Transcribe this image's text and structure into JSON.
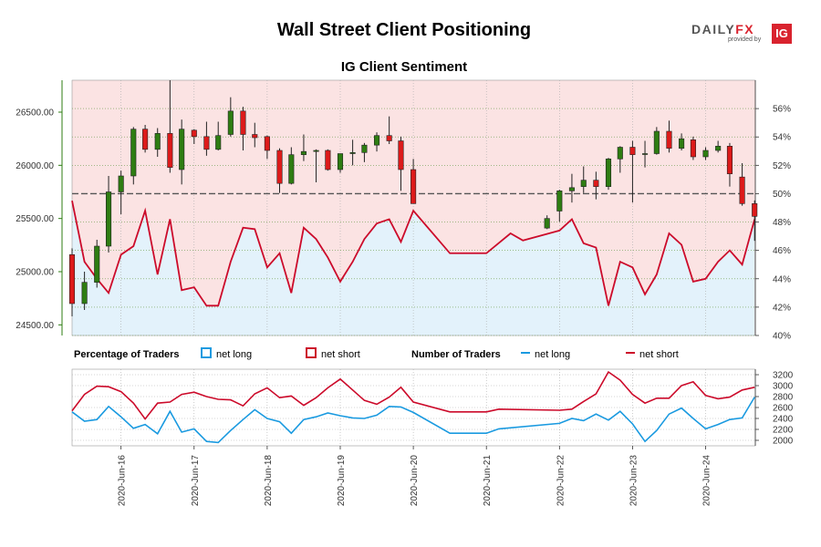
{
  "header": {
    "title": "Wall Street Client Positioning",
    "subtitle": "IG Client Sentiment",
    "logo_text_a": "DAILY",
    "logo_text_b": "FX",
    "logo_sub": "provided by",
    "logo_badge": "IG"
  },
  "legend": {
    "pct_heading": "Percentage of Traders",
    "pct_long": "net long",
    "pct_short": "net short",
    "num_heading": "Number of Traders",
    "num_long": "net long",
    "num_short": "net short"
  },
  "colors": {
    "long": "#1a9ae0",
    "short": "#cc0a2a",
    "bull_candle": "#2e7d12",
    "bear_candle": "#dd1a1a",
    "short_zone": "#fbe3e3",
    "long_zone": "#e3f2fb",
    "left_axis": "#2e7d12"
  },
  "chart_data": [
    {
      "type": "candlestick",
      "title": "IG Client Sentiment",
      "y_left_ticks": [
        "24500.00",
        "25000.00",
        "25500.00",
        "26000.00",
        "26500.00"
      ],
      "y_left_range": [
        24400,
        26800
      ],
      "y_right_ticks": [
        "40%",
        "42%",
        "44%",
        "46%",
        "48%",
        "50%",
        "52%",
        "54%",
        "56%"
      ],
      "y_right_range": [
        40,
        58
      ],
      "x_ticks": [
        "2020-Jun-16",
        "2020-Jun-17",
        "2020-Jun-18",
        "2020-Jun-19",
        "2020-Jun-20",
        "2020-Jun-21",
        "2020-Jun-22",
        "2020-Jun-23",
        "2020-Jun-24"
      ],
      "x_range": [
        15.33,
        24.68
      ],
      "reference_line_pct": 50,
      "candles": [
        {
          "t": 15.33,
          "o": 25160,
          "h": 25220,
          "l": 24580,
          "c": 24700
        },
        {
          "t": 15.5,
          "o": 24700,
          "h": 25000,
          "l": 24640,
          "c": 24900
        },
        {
          "t": 15.67,
          "o": 24900,
          "h": 25300,
          "l": 24850,
          "c": 25240
        },
        {
          "t": 15.83,
          "o": 25240,
          "h": 25900,
          "l": 25180,
          "c": 25750
        },
        {
          "t": 16.0,
          "o": 25750,
          "h": 25950,
          "l": 25540,
          "c": 25900
        },
        {
          "t": 16.17,
          "o": 25900,
          "h": 26360,
          "l": 25820,
          "c": 26340
        },
        {
          "t": 16.33,
          "o": 26340,
          "h": 26380,
          "l": 26120,
          "c": 26150
        },
        {
          "t": 16.5,
          "o": 26150,
          "h": 26350,
          "l": 26080,
          "c": 26300
        },
        {
          "t": 16.67,
          "o": 26300,
          "h": 26800,
          "l": 25930,
          "c": 25980
        },
        {
          "t": 16.83,
          "o": 25960,
          "h": 26430,
          "l": 25820,
          "c": 26340
        },
        {
          "t": 17.0,
          "o": 26330,
          "h": 26340,
          "l": 26200,
          "c": 26270
        },
        {
          "t": 17.17,
          "o": 26270,
          "h": 26410,
          "l": 26090,
          "c": 26150
        },
        {
          "t": 17.33,
          "o": 26150,
          "h": 26410,
          "l": 26140,
          "c": 26280
        },
        {
          "t": 17.5,
          "o": 26290,
          "h": 26640,
          "l": 26270,
          "c": 26510
        },
        {
          "t": 17.67,
          "o": 26510,
          "h": 26550,
          "l": 26140,
          "c": 26290
        },
        {
          "t": 17.83,
          "o": 26290,
          "h": 26400,
          "l": 26170,
          "c": 26260
        },
        {
          "t": 18.0,
          "o": 26270,
          "h": 26280,
          "l": 26060,
          "c": 26140
        },
        {
          "t": 18.17,
          "o": 26140,
          "h": 26160,
          "l": 25740,
          "c": 25830
        },
        {
          "t": 18.33,
          "o": 25830,
          "h": 26170,
          "l": 25820,
          "c": 26100
        },
        {
          "t": 18.5,
          "o": 26100,
          "h": 26290,
          "l": 26040,
          "c": 26130
        },
        {
          "t": 18.67,
          "o": 26130,
          "h": 26150,
          "l": 25840,
          "c": 26140
        },
        {
          "t": 18.83,
          "o": 26140,
          "h": 26150,
          "l": 25950,
          "c": 25960
        },
        {
          "t": 19.0,
          "o": 25960,
          "h": 26110,
          "l": 25930,
          "c": 26110
        },
        {
          "t": 19.17,
          "o": 26110,
          "h": 26240,
          "l": 26000,
          "c": 26120
        },
        {
          "t": 19.33,
          "o": 26120,
          "h": 26210,
          "l": 26030,
          "c": 26190
        },
        {
          "t": 19.5,
          "o": 26190,
          "h": 26310,
          "l": 26130,
          "c": 26280
        },
        {
          "t": 19.67,
          "o": 26280,
          "h": 26460,
          "l": 26200,
          "c": 26230
        },
        {
          "t": 19.83,
          "o": 26230,
          "h": 26270,
          "l": 25760,
          "c": 25960
        },
        {
          "t": 20.0,
          "o": 25960,
          "h": 26060,
          "l": 25640,
          "c": 25640
        },
        {
          "t": 21.83,
          "o": 25410,
          "h": 25530,
          "l": 25400,
          "c": 25500
        },
        {
          "t": 22.0,
          "o": 25570,
          "h": 25770,
          "l": 25470,
          "c": 25760
        },
        {
          "t": 22.17,
          "o": 25760,
          "h": 25920,
          "l": 25650,
          "c": 25790
        },
        {
          "t": 22.33,
          "o": 25800,
          "h": 25990,
          "l": 25740,
          "c": 25860
        },
        {
          "t": 22.5,
          "o": 25860,
          "h": 25940,
          "l": 25680,
          "c": 25800
        },
        {
          "t": 22.67,
          "o": 25800,
          "h": 26070,
          "l": 25770,
          "c": 26060
        },
        {
          "t": 22.83,
          "o": 26060,
          "h": 26180,
          "l": 25930,
          "c": 26170
        },
        {
          "t": 23.0,
          "o": 26170,
          "h": 26230,
          "l": 25650,
          "c": 26100
        },
        {
          "t": 23.17,
          "o": 26110,
          "h": 26230,
          "l": 25980,
          "c": 26110
        },
        {
          "t": 23.33,
          "o": 26110,
          "h": 26360,
          "l": 26100,
          "c": 26320
        },
        {
          "t": 23.5,
          "o": 26320,
          "h": 26420,
          "l": 26120,
          "c": 26160
        },
        {
          "t": 23.67,
          "o": 26160,
          "h": 26300,
          "l": 26140,
          "c": 26250
        },
        {
          "t": 23.83,
          "o": 26240,
          "h": 26270,
          "l": 26050,
          "c": 26080
        },
        {
          "t": 24.0,
          "o": 26080,
          "h": 26170,
          "l": 26050,
          "c": 26140
        },
        {
          "t": 24.17,
          "o": 26140,
          "h": 26230,
          "l": 26120,
          "c": 26180
        },
        {
          "t": 24.33,
          "o": 26180,
          "h": 26210,
          "l": 25800,
          "c": 25920
        },
        {
          "t": 24.5,
          "o": 25890,
          "h": 26020,
          "l": 25620,
          "c": 25640
        },
        {
          "t": 24.67,
          "o": 25640,
          "h": 25670,
          "l": 25290,
          "c": 25520
        }
      ],
      "net_short_pct": {
        "t": [
          15.33,
          15.5,
          15.67,
          15.83,
          16.0,
          16.17,
          16.33,
          16.5,
          16.67,
          16.83,
          17.0,
          17.17,
          17.33,
          17.5,
          17.67,
          17.83,
          18.0,
          18.17,
          18.33,
          18.5,
          18.67,
          18.83,
          19.0,
          19.17,
          19.33,
          19.5,
          19.67,
          19.83,
          20.0,
          20.5,
          21.0,
          21.33,
          21.5,
          22.0,
          22.17,
          22.33,
          22.5,
          22.67,
          22.83,
          23.0,
          23.17,
          23.33,
          23.5,
          23.67,
          23.83,
          24.0,
          24.17,
          24.33,
          24.5,
          24.67
        ],
        "v": [
          49.5,
          45.2,
          44.0,
          43.0,
          45.7,
          46.3,
          48.8,
          44.3,
          48.2,
          43.2,
          43.4,
          42.1,
          42.1,
          45.2,
          47.6,
          47.5,
          44.8,
          45.8,
          43.0,
          47.6,
          46.8,
          45.5,
          43.8,
          45.2,
          46.8,
          47.9,
          48.2,
          46.6,
          48.8,
          45.8,
          45.8,
          47.2,
          46.7,
          47.4,
          48.2,
          46.5,
          46.2,
          42.1,
          45.2,
          44.8,
          42.9,
          44.3,
          47.2,
          46.4,
          43.8,
          44.0,
          45.2,
          46.0,
          45.0,
          48.2
        ]
      },
      "net_long_pct_fill": "below line"
    },
    {
      "type": "line",
      "title": "Number of Traders",
      "y_ticks": [
        "2000",
        "2200",
        "2400",
        "2600",
        "2800",
        "3000",
        "3200"
      ],
      "y_range": [
        1900,
        3300
      ],
      "x_range": [
        15.33,
        24.68
      ],
      "series": [
        {
          "name": "net long",
          "t": [
            15.33,
            15.5,
            15.67,
            15.83,
            16.0,
            16.17,
            16.33,
            16.5,
            16.67,
            16.83,
            17.0,
            17.17,
            17.33,
            17.5,
            17.67,
            17.83,
            18.0,
            18.17,
            18.33,
            18.5,
            18.67,
            18.83,
            19.0,
            19.17,
            19.33,
            19.5,
            19.67,
            19.83,
            20.0,
            20.5,
            21.0,
            21.17,
            22.0,
            22.17,
            22.33,
            22.5,
            22.67,
            22.83,
            23.0,
            23.17,
            23.33,
            23.5,
            23.67,
            23.83,
            24.0,
            24.17,
            24.33,
            24.5,
            24.67
          ],
          "v": [
            2520,
            2350,
            2380,
            2620,
            2430,
            2220,
            2290,
            2120,
            2530,
            2150,
            2210,
            1980,
            1960,
            2180,
            2380,
            2560,
            2400,
            2340,
            2130,
            2380,
            2430,
            2500,
            2450,
            2410,
            2400,
            2460,
            2620,
            2610,
            2510,
            2130,
            2130,
            2210,
            2310,
            2400,
            2360,
            2480,
            2370,
            2530,
            2300,
            1980,
            2180,
            2480,
            2590,
            2400,
            2210,
            2290,
            2380,
            2410,
            2790
          ]
        },
        {
          "name": "net short",
          "t": [
            15.33,
            15.5,
            15.67,
            15.83,
            16.0,
            16.17,
            16.33,
            16.5,
            16.67,
            16.83,
            17.0,
            17.17,
            17.33,
            17.5,
            17.67,
            17.83,
            18.0,
            18.17,
            18.33,
            18.5,
            18.67,
            18.83,
            19.0,
            19.17,
            19.33,
            19.5,
            19.67,
            19.83,
            20.0,
            20.5,
            21.0,
            21.17,
            22.0,
            22.17,
            22.33,
            22.5,
            22.67,
            22.83,
            23.0,
            23.17,
            23.33,
            23.5,
            23.67,
            23.83,
            24.0,
            24.17,
            24.33,
            24.5,
            24.67
          ],
          "v": [
            2540,
            2840,
            2990,
            2980,
            2890,
            2680,
            2390,
            2680,
            2700,
            2840,
            2880,
            2800,
            2750,
            2740,
            2630,
            2850,
            2960,
            2780,
            2810,
            2640,
            2780,
            2960,
            3120,
            2920,
            2730,
            2660,
            2790,
            2970,
            2700,
            2520,
            2520,
            2570,
            2550,
            2570,
            2710,
            2850,
            3250,
            3100,
            2840,
            2680,
            2770,
            2770,
            3000,
            3070,
            2820,
            2760,
            2790,
            2920,
            2970
          ]
        }
      ]
    }
  ]
}
